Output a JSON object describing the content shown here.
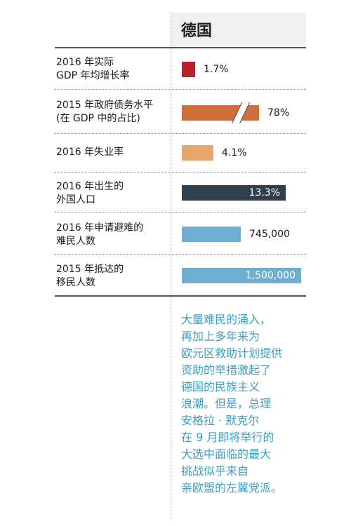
{
  "header": {
    "title": "德国"
  },
  "chart_data": {
    "type": "bar",
    "series": [
      {
        "label_lines": [
          "2016 年实际",
          "GDP 年均增长率"
        ],
        "value": 1.7,
        "value_text": "1.7%",
        "color": "#b8202a"
      },
      {
        "label_lines": [
          "2015 年政府债务水平",
          "(在 GDP 中的占比)"
        ],
        "value": 78,
        "value_text": "78%",
        "color": "#cf6e3a",
        "axis_break": true
      },
      {
        "label_lines": [
          "2016 年失业率"
        ],
        "value": 4.1,
        "value_text": "4.1%",
        "color": "#e4a86e"
      },
      {
        "label_lines": [
          "2016 年出生的",
          "外国人口"
        ],
        "value": 13.3,
        "value_text": "13.3%",
        "color": "#2f3f4c"
      },
      {
        "label_lines": [
          "2016 年申请避难的",
          "难民人数"
        ],
        "value": 745000,
        "value_text": "745,000",
        "color": "#6eaed0"
      },
      {
        "label_lines": [
          "2015 年抵达的",
          "移民人数"
        ],
        "value": 1500000,
        "value_text": "1,500,000",
        "color": "#6eaed0"
      }
    ]
  },
  "note": {
    "lines": [
      "大量难民的涌入，",
      "再加上多年来为",
      "欧元区救助计划提供",
      "资助的举措激起了",
      "德国的民族主义",
      "浪潮。但是，总理",
      "安格拉 · 默克尔",
      "在 9 月即将举行的",
      "大选中面临的最大",
      "挑战似乎来自",
      "亲欧盟的左翼党派。"
    ]
  }
}
